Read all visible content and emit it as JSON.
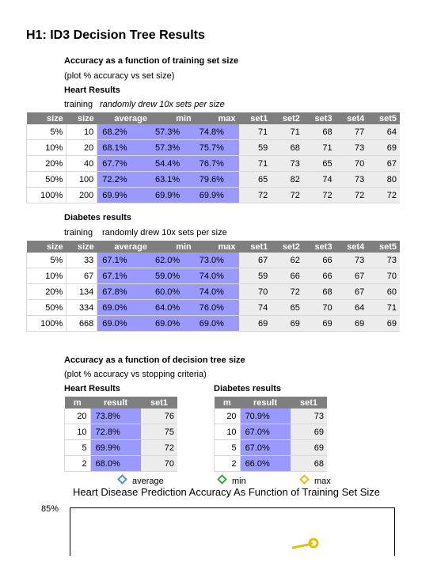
{
  "title": "H1: ID3 Decision Tree Results",
  "section1": {
    "heading": "Accuracy as a function of training set size",
    "subheading": "(plot % accuracy vs set size)",
    "heart": {
      "label": "Heart Results",
      "training_label": "training",
      "training_note": "randomly drew 10x sets per size",
      "headers": [
        "size",
        "size",
        "average",
        "min",
        "max",
        "set1",
        "set2",
        "set3",
        "set4",
        "set5"
      ],
      "rows": [
        [
          "5%",
          "10",
          "68.2%",
          "57.3%",
          "74.8%",
          "71",
          "71",
          "68",
          "77",
          "64"
        ],
        [
          "10%",
          "20",
          "68.1%",
          "57.3%",
          "75.7%",
          "59",
          "68",
          "71",
          "73",
          "69"
        ],
        [
          "20%",
          "40",
          "67.7%",
          "54.4%",
          "76.7%",
          "71",
          "73",
          "65",
          "70",
          "67"
        ],
        [
          "50%",
          "100",
          "72.2%",
          "63.1%",
          "79.6%",
          "65",
          "82",
          "74",
          "73",
          "80"
        ],
        [
          "100%",
          "200",
          "69.9%",
          "69.9%",
          "69.9%",
          "72",
          "72",
          "72",
          "72",
          "72"
        ]
      ]
    },
    "diabetes": {
      "label": "Diabetes results",
      "training_label": "training",
      "training_note": "randomly drew 10x sets per size",
      "headers": [
        "size",
        "size",
        "average",
        "min",
        "max",
        "set1",
        "set2",
        "set3",
        "set4",
        "set5"
      ],
      "rows": [
        [
          "5%",
          "33",
          "67.1%",
          "62.0%",
          "73.0%",
          "67",
          "62",
          "66",
          "73",
          "73"
        ],
        [
          "10%",
          "67",
          "67.1%",
          "59.0%",
          "74.0%",
          "59",
          "66",
          "66",
          "67",
          "70"
        ],
        [
          "20%",
          "134",
          "67.8%",
          "60.0%",
          "74.0%",
          "70",
          "72",
          "68",
          "67",
          "60"
        ],
        [
          "50%",
          "334",
          "69.0%",
          "64.0%",
          "76.0%",
          "74",
          "65",
          "70",
          "64",
          "71"
        ],
        [
          "100%",
          "668",
          "69.0%",
          "69.0%",
          "69.0%",
          "69",
          "69",
          "69",
          "69",
          "69"
        ]
      ]
    }
  },
  "section2": {
    "heading": "Accuracy as a function of decision tree size",
    "subheading": "(plot % accuracy vs stopping criteria)",
    "heart": {
      "label": "Heart Results",
      "headers": [
        "m",
        "result",
        "set1"
      ],
      "rows": [
        [
          "20",
          "73.8%",
          "76"
        ],
        [
          "10",
          "72.8%",
          "75"
        ],
        [
          "5",
          "69.9%",
          "72"
        ],
        [
          "2",
          "68.0%",
          "70"
        ]
      ]
    },
    "diabetes": {
      "label": "Diabetes results",
      "headers": [
        "m",
        "result",
        "set1"
      ],
      "rows": [
        [
          "20",
          "70.9%",
          "73"
        ],
        [
          "10",
          "67.0%",
          "69"
        ],
        [
          "5",
          "67.0%",
          "69"
        ],
        [
          "2",
          "66.0%",
          "68"
        ]
      ]
    }
  },
  "chart_data": {
    "type": "line",
    "title": "Heart Disease Prediction Accuracy As Function of Training Set Size",
    "legend": [
      {
        "name": "average",
        "color": "#4a90d9"
      },
      {
        "name": "min",
        "color": "#33aa33"
      },
      {
        "name": "max",
        "color": "#e6c000"
      }
    ],
    "legend_position": "top",
    "y_tick_visible": "85%",
    "series": []
  }
}
